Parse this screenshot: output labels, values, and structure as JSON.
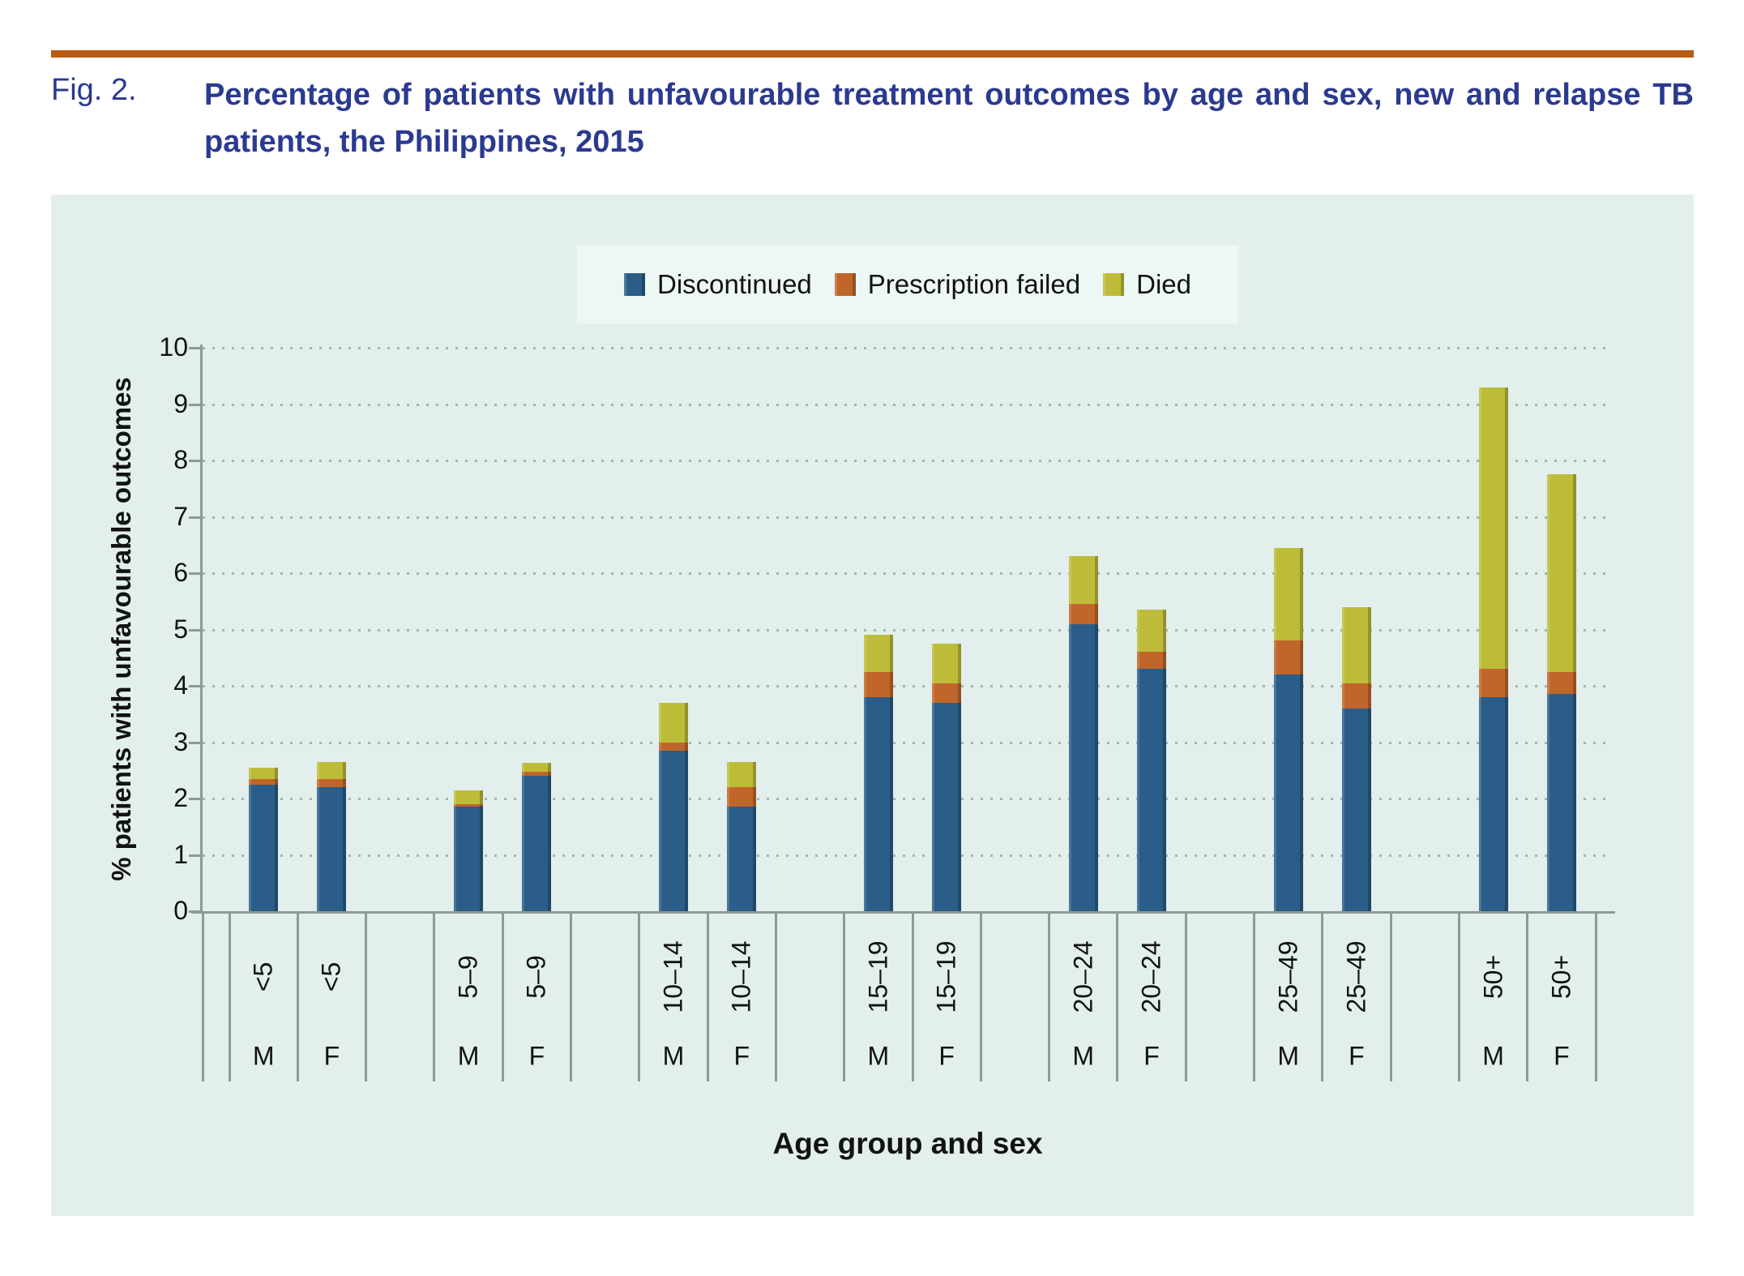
{
  "figure": {
    "tag": "Fig. 2.",
    "title": "Percentage of patients with unfavourable treatment outcomes by age and sex, new and relapse TB patients, the Philippines, 2015"
  },
  "chart_data": {
    "type": "bar",
    "stacked": true,
    "title": "",
    "xlabel": "Age group and sex",
    "ylabel": "% patients with unfavourable outcomes",
    "ylim": [
      0,
      10
    ],
    "ytick_labels": [
      "0",
      "1",
      "2",
      "3",
      "4",
      "5",
      "6",
      "7",
      "8",
      "9",
      "10"
    ],
    "grid": "horizontal-dotted",
    "legend_position": "top-center",
    "series": [
      {
        "name": "Discontinued",
        "color": "#2a5d87"
      },
      {
        "name": "Prescription failed",
        "color": "#c0662a"
      },
      {
        "name": "Died",
        "color": "#bdbc39"
      }
    ],
    "categories": [
      "<5",
      "5–9",
      "10–14",
      "15–19",
      "20–24",
      "25–49",
      "50+"
    ],
    "bars": [
      {
        "age": "<5",
        "sex": "M",
        "values": [
          2.25,
          0.1,
          0.2
        ]
      },
      {
        "age": "<5",
        "sex": "F",
        "values": [
          2.2,
          0.15,
          0.3
        ]
      },
      {
        "age": "5–9",
        "sex": "M",
        "values": [
          1.85,
          0.05,
          0.25
        ]
      },
      {
        "age": "5–9",
        "sex": "F",
        "values": [
          2.4,
          0.08,
          0.15
        ]
      },
      {
        "age": "10–14",
        "sex": "M",
        "values": [
          2.85,
          0.15,
          0.7
        ]
      },
      {
        "age": "10–14",
        "sex": "F",
        "values": [
          1.85,
          0.35,
          0.45
        ]
      },
      {
        "age": "15–19",
        "sex": "M",
        "values": [
          3.8,
          0.45,
          0.65
        ]
      },
      {
        "age": "15–19",
        "sex": "F",
        "values": [
          3.7,
          0.35,
          0.7
        ]
      },
      {
        "age": "20–24",
        "sex": "M",
        "values": [
          5.1,
          0.35,
          0.85
        ]
      },
      {
        "age": "20–24",
        "sex": "F",
        "values": [
          4.3,
          0.3,
          0.75
        ]
      },
      {
        "age": "25–49",
        "sex": "M",
        "values": [
          4.2,
          0.6,
          1.65
        ]
      },
      {
        "age": "25–49",
        "sex": "F",
        "values": [
          3.6,
          0.45,
          1.35
        ]
      },
      {
        "age": "50+",
        "sex": "M",
        "values": [
          3.8,
          0.5,
          5.0
        ]
      },
      {
        "age": "50+",
        "sex": "F",
        "values": [
          3.85,
          0.4,
          3.5
        ]
      }
    ],
    "colors": {
      "panel_background": "#e2efec",
      "legend_background": "#edf7f4",
      "axis": "#8e9a97",
      "grid_dots": "#a6b4b0",
      "title_blue": "#2b3a8f",
      "top_rule_orange": "#b65c15"
    }
  }
}
